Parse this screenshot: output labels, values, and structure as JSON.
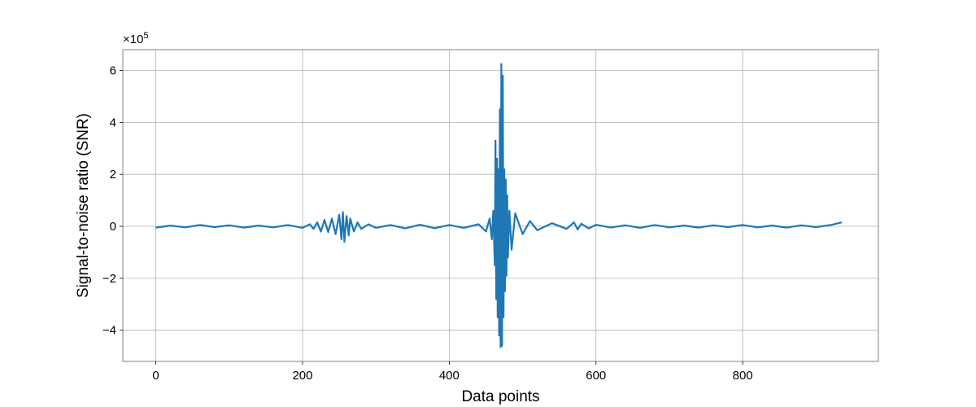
{
  "chart_data": {
    "type": "line",
    "title": "",
    "xlabel": "Data points",
    "ylabel": "Signal-to-noise ratio (SNR)",
    "y_multiplier": "×10",
    "y_multiplier_exp": "5",
    "xlim": [
      -45,
      985
    ],
    "ylim": [
      -5.2,
      6.8
    ],
    "x_ticks": [
      0,
      200,
      400,
      600,
      800
    ],
    "x_tick_labels": [
      "0",
      "200",
      "400",
      "600",
      "800"
    ],
    "y_ticks": [
      -4,
      -2,
      0,
      2,
      4,
      6
    ],
    "y_tick_labels": [
      "−4",
      "−2",
      "0",
      "2",
      "4",
      "6"
    ],
    "grid": true,
    "colors": {
      "line": "#1f77b4",
      "grid": "#b0b0b0",
      "frame": "#808080"
    },
    "series": [
      {
        "x": [
          0,
          20,
          40,
          60,
          80,
          100,
          120,
          140,
          160,
          180,
          200,
          210,
          215,
          220,
          225,
          230,
          235,
          240,
          245,
          250,
          253,
          255,
          257,
          260,
          263,
          265,
          270,
          275,
          280,
          290,
          300,
          320,
          340,
          360,
          380,
          400,
          420,
          440,
          450,
          455,
          458,
          460,
          462,
          463,
          464,
          465,
          466,
          467,
          468,
          469,
          470,
          471,
          472,
          473,
          474,
          475,
          476,
          477,
          478,
          479,
          480,
          482,
          485,
          490,
          500,
          510,
          520,
          540,
          560,
          570,
          575,
          580,
          590,
          600,
          620,
          640,
          660,
          680,
          700,
          720,
          740,
          760,
          780,
          800,
          820,
          840,
          860,
          880,
          900,
          920,
          935
        ],
        "y": [
          -0.05,
          0.03,
          -0.04,
          0.05,
          -0.03,
          0.04,
          -0.05,
          0.03,
          -0.04,
          0.05,
          -0.06,
          0.08,
          -0.1,
          0.15,
          -0.2,
          0.25,
          -0.22,
          0.3,
          -0.3,
          0.45,
          -0.5,
          0.55,
          -0.6,
          0.4,
          -0.35,
          0.3,
          -0.2,
          0.15,
          -0.1,
          0.08,
          -0.06,
          0.05,
          -0.08,
          0.06,
          -0.07,
          0.05,
          -0.06,
          0.08,
          -0.2,
          0.3,
          -0.5,
          0.6,
          -1.5,
          3.3,
          -2.8,
          2.6,
          -3.5,
          2.2,
          -4.2,
          4.5,
          -4.65,
          6.25,
          -4.6,
          5.8,
          -3.5,
          2.2,
          -2.5,
          1.8,
          -1.9,
          1.2,
          -1.2,
          0.6,
          -0.9,
          0.5,
          -0.3,
          0.2,
          -0.15,
          0.12,
          -0.1,
          0.15,
          -0.12,
          0.1,
          -0.08,
          0.06,
          -0.05,
          0.04,
          -0.06,
          0.05,
          -0.04,
          0.03,
          -0.05,
          0.04,
          -0.03,
          0.05,
          -0.04,
          0.03,
          -0.05,
          0.04,
          -0.03,
          0.05,
          0.15
        ]
      }
    ]
  }
}
